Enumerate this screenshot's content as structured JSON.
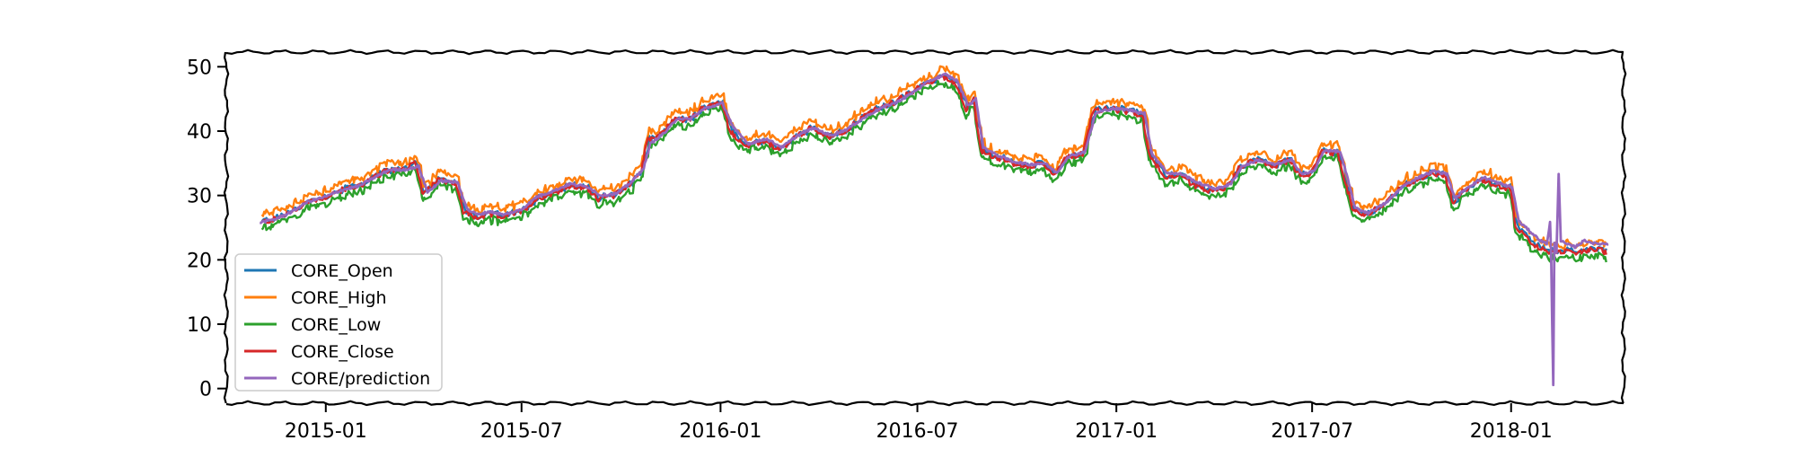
{
  "chart_data": {
    "type": "line",
    "title": "",
    "xlabel": "",
    "ylabel": "",
    "xlim": [
      "2014-10-01",
      "2018-04-15"
    ],
    "ylim": [
      -2,
      52
    ],
    "x_ticks": [
      "2015-01",
      "2015-07",
      "2016-01",
      "2016-07",
      "2017-01",
      "2017-07",
      "2018-01"
    ],
    "y_ticks": [
      0,
      10,
      20,
      30,
      40,
      50
    ],
    "grid": false,
    "legend_position": "lower-left",
    "series": [
      {
        "name": "CORE_Open",
        "color": "#1f77b4"
      },
      {
        "name": "CORE_High",
        "color": "#ff7f0e"
      },
      {
        "name": "CORE_Low",
        "color": "#2ca02c"
      },
      {
        "name": "CORE_Close",
        "color": "#d62728"
      },
      {
        "name": "CORE/prediction",
        "color": "#9467bd"
      }
    ],
    "close_anchors": [
      [
        "2014-11-01",
        25.8
      ],
      [
        "2014-11-15",
        26.3
      ],
      [
        "2014-12-01",
        27.5
      ],
      [
        "2014-12-15",
        29.0
      ],
      [
        "2015-01-01",
        29.8
      ],
      [
        "2015-01-15",
        30.8
      ],
      [
        "2015-02-01",
        31.5
      ],
      [
        "2015-02-15",
        32.8
      ],
      [
        "2015-03-01",
        34.0
      ],
      [
        "2015-03-15",
        34.2
      ],
      [
        "2015-03-25",
        35.0
      ],
      [
        "2015-04-01",
        30.0
      ],
      [
        "2015-04-15",
        32.5
      ],
      [
        "2015-05-01",
        32.0
      ],
      [
        "2015-05-08",
        27.5
      ],
      [
        "2015-05-20",
        26.5
      ],
      [
        "2015-06-01",
        27.0
      ],
      [
        "2015-06-15",
        26.8
      ],
      [
        "2015-07-01",
        27.5
      ],
      [
        "2015-07-15",
        29.5
      ],
      [
        "2015-08-01",
        30.5
      ],
      [
        "2015-08-15",
        31.5
      ],
      [
        "2015-09-01",
        31.0
      ],
      [
        "2015-09-10",
        29.5
      ],
      [
        "2015-09-25",
        30.0
      ],
      [
        "2015-10-10",
        32.0
      ],
      [
        "2015-10-20",
        34.0
      ],
      [
        "2015-10-25",
        38.5
      ],
      [
        "2015-11-10",
        40.0
      ],
      [
        "2015-11-20",
        42.0
      ],
      [
        "2015-12-01",
        41.5
      ],
      [
        "2015-12-15",
        43.5
      ],
      [
        "2016-01-01",
        44.5
      ],
      [
        "2016-01-10",
        40.0
      ],
      [
        "2016-01-25",
        37.5
      ],
      [
        "2016-02-10",
        38.5
      ],
      [
        "2016-02-25",
        37.0
      ],
      [
        "2016-03-10",
        39.0
      ],
      [
        "2016-03-25",
        40.5
      ],
      [
        "2016-04-10",
        39.0
      ],
      [
        "2016-04-25",
        40.0
      ],
      [
        "2016-05-10",
        42.0
      ],
      [
        "2016-05-25",
        43.5
      ],
      [
        "2016-06-10",
        44.5
      ],
      [
        "2016-06-25",
        46.0
      ],
      [
        "2016-07-10",
        47.5
      ],
      [
        "2016-07-25",
        48.5
      ],
      [
        "2016-08-05",
        47.5
      ],
      [
        "2016-08-15",
        43.5
      ],
      [
        "2016-08-22",
        45.0
      ],
      [
        "2016-08-28",
        37.0
      ],
      [
        "2016-09-10",
        36.0
      ],
      [
        "2016-09-25",
        35.0
      ],
      [
        "2016-10-10",
        34.5
      ],
      [
        "2016-10-25",
        35.0
      ],
      [
        "2016-11-05",
        33.0
      ],
      [
        "2016-11-15",
        36.0
      ],
      [
        "2016-12-01",
        36.5
      ],
      [
        "2016-12-10",
        43.0
      ],
      [
        "2016-12-25",
        43.5
      ],
      [
        "2017-01-10",
        43.0
      ],
      [
        "2017-01-25",
        42.5
      ],
      [
        "2017-02-01",
        36.0
      ],
      [
        "2017-02-15",
        33.0
      ],
      [
        "2017-03-01",
        33.0
      ],
      [
        "2017-03-15",
        31.5
      ],
      [
        "2017-04-01",
        30.5
      ],
      [
        "2017-04-15",
        31.5
      ],
      [
        "2017-04-25",
        34.5
      ],
      [
        "2017-05-10",
        35.5
      ],
      [
        "2017-05-25",
        34.5
      ],
      [
        "2017-06-10",
        35.5
      ],
      [
        "2017-06-20",
        33.0
      ],
      [
        "2017-07-01",
        33.5
      ],
      [
        "2017-07-10",
        37.0
      ],
      [
        "2017-07-25",
        36.5
      ],
      [
        "2017-08-01",
        32.0
      ],
      [
        "2017-08-08",
        27.5
      ],
      [
        "2017-08-20",
        27.0
      ],
      [
        "2017-09-05",
        28.5
      ],
      [
        "2017-09-20",
        31.0
      ],
      [
        "2017-10-05",
        32.5
      ],
      [
        "2017-10-20",
        33.5
      ],
      [
        "2017-11-01",
        33.0
      ],
      [
        "2017-11-08",
        29.0
      ],
      [
        "2017-11-20",
        31.0
      ],
      [
        "2017-12-05",
        32.5
      ],
      [
        "2017-12-20",
        31.5
      ],
      [
        "2018-01-01",
        31.0
      ],
      [
        "2018-01-05",
        25.0
      ],
      [
        "2018-01-15",
        23.5
      ],
      [
        "2018-01-25",
        22.0
      ],
      [
        "2018-02-05",
        21.0
      ],
      [
        "2018-02-15",
        21.5
      ],
      [
        "2018-02-25",
        21.0
      ],
      [
        "2018-03-10",
        21.5
      ],
      [
        "2018-03-25",
        21.5
      ],
      [
        "2018-04-01",
        21.0
      ]
    ],
    "high_offset": 1.0,
    "low_offset": -0.9,
    "open_offset": 0.15,
    "prediction_anchors": [
      [
        "2014-11-01",
        25.8
      ],
      [
        "2014-11-15",
        26.3
      ],
      [
        "2014-12-01",
        27.5
      ],
      [
        "2014-12-15",
        29.0
      ],
      [
        "2015-01-01",
        29.8
      ],
      [
        "2015-01-15",
        30.8
      ],
      [
        "2015-02-01",
        31.5
      ],
      [
        "2015-02-15",
        32.8
      ],
      [
        "2015-03-01",
        34.0
      ],
      [
        "2015-03-15",
        34.0
      ],
      [
        "2015-03-28",
        34.5
      ],
      [
        "2015-04-05",
        30.5
      ],
      [
        "2015-04-18",
        32.3
      ],
      [
        "2015-05-03",
        32.0
      ],
      [
        "2015-05-12",
        27.8
      ],
      [
        "2015-05-22",
        27.0
      ],
      [
        "2015-06-01",
        27.5
      ],
      [
        "2015-06-15",
        27.0
      ],
      [
        "2015-07-01",
        27.8
      ],
      [
        "2015-07-15",
        29.8
      ],
      [
        "2015-08-01",
        30.8
      ],
      [
        "2015-08-15",
        31.8
      ],
      [
        "2015-09-01",
        31.3
      ],
      [
        "2015-09-12",
        30.0
      ],
      [
        "2015-09-27",
        30.3
      ],
      [
        "2015-10-12",
        32.3
      ],
      [
        "2015-10-22",
        34.3
      ],
      [
        "2015-10-28",
        38.0
      ],
      [
        "2015-11-12",
        40.0
      ],
      [
        "2015-11-22",
        42.0
      ],
      [
        "2015-12-03",
        41.8
      ],
      [
        "2015-12-17",
        43.5
      ],
      [
        "2016-01-03",
        44.3
      ],
      [
        "2016-01-13",
        40.5
      ],
      [
        "2016-01-27",
        38.0
      ],
      [
        "2016-02-12",
        38.8
      ],
      [
        "2016-02-27",
        37.5
      ],
      [
        "2016-03-12",
        39.3
      ],
      [
        "2016-03-27",
        40.5
      ],
      [
        "2016-04-12",
        39.3
      ],
      [
        "2016-04-27",
        40.3
      ],
      [
        "2016-05-12",
        42.0
      ],
      [
        "2016-05-27",
        43.5
      ],
      [
        "2016-06-12",
        44.5
      ],
      [
        "2016-06-27",
        46.0
      ],
      [
        "2016-07-12",
        47.8
      ],
      [
        "2016-07-27",
        48.8
      ],
      [
        "2016-08-07",
        47.8
      ],
      [
        "2016-08-17",
        44.0
      ],
      [
        "2016-08-24",
        45.0
      ],
      [
        "2016-08-31",
        37.5
      ],
      [
        "2016-09-12",
        36.3
      ],
      [
        "2016-09-27",
        35.3
      ],
      [
        "2016-10-12",
        34.8
      ],
      [
        "2016-10-27",
        35.0
      ],
      [
        "2016-11-07",
        33.5
      ],
      [
        "2016-11-17",
        36.0
      ],
      [
        "2016-12-03",
        36.8
      ],
      [
        "2016-12-13",
        42.8
      ],
      [
        "2016-12-27",
        43.5
      ],
      [
        "2017-01-12",
        43.3
      ],
      [
        "2017-01-27",
        42.8
      ],
      [
        "2017-02-03",
        36.5
      ],
      [
        "2017-02-17",
        33.5
      ],
      [
        "2017-03-03",
        33.3
      ],
      [
        "2017-03-17",
        32.0
      ],
      [
        "2017-04-03",
        31.0
      ],
      [
        "2017-04-17",
        31.8
      ],
      [
        "2017-04-27",
        34.5
      ],
      [
        "2017-05-12",
        35.5
      ],
      [
        "2017-05-27",
        34.8
      ],
      [
        "2017-06-12",
        35.5
      ],
      [
        "2017-06-22",
        33.3
      ],
      [
        "2017-07-03",
        33.8
      ],
      [
        "2017-07-12",
        37.0
      ],
      [
        "2017-07-27",
        36.8
      ],
      [
        "2017-08-03",
        32.5
      ],
      [
        "2017-08-10",
        28.0
      ],
      [
        "2017-08-22",
        27.3
      ],
      [
        "2017-09-07",
        28.8
      ],
      [
        "2017-09-22",
        31.3
      ],
      [
        "2017-10-07",
        32.8
      ],
      [
        "2017-10-22",
        33.8
      ],
      [
        "2017-11-03",
        33.3
      ],
      [
        "2017-11-10",
        29.5
      ],
      [
        "2017-11-22",
        31.3
      ],
      [
        "2017-12-07",
        32.8
      ],
      [
        "2017-12-22",
        31.8
      ],
      [
        "2018-01-02",
        31.3
      ],
      [
        "2018-01-08",
        26.0
      ],
      [
        "2018-01-18",
        24.5
      ],
      [
        "2018-01-28",
        23.0
      ],
      [
        "2018-02-03",
        22.5
      ],
      [
        "2018-02-06",
        25.8
      ],
      [
        "2018-02-07",
        21.0
      ],
      [
        "2018-02-08",
        10.0
      ],
      [
        "2018-02-09",
        0.5
      ],
      [
        "2018-02-10",
        22.5
      ],
      [
        "2018-02-12",
        21.0
      ],
      [
        "2018-02-14",
        33.5
      ],
      [
        "2018-02-16",
        23.0
      ],
      [
        "2018-02-20",
        22.5
      ],
      [
        "2018-03-01",
        22.0
      ],
      [
        "2018-03-10",
        23.0
      ],
      [
        "2018-03-20",
        22.5
      ],
      [
        "2018-04-01",
        22.5
      ]
    ]
  }
}
